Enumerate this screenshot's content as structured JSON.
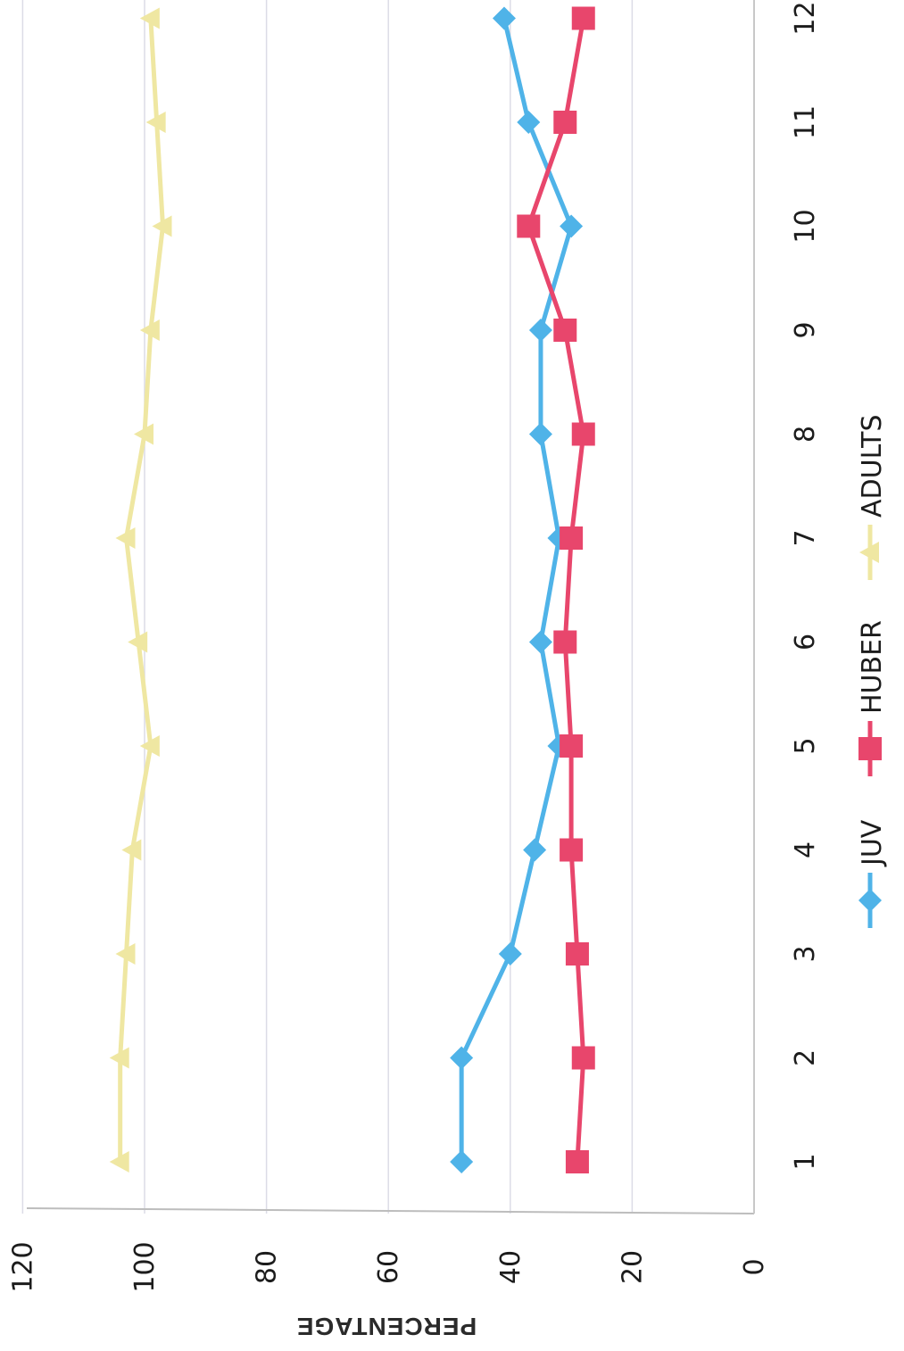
{
  "chart_data": {
    "type": "line",
    "title": "",
    "xlabel": "",
    "ylabel": "PERCENTAGE",
    "x": [
      1,
      2,
      3,
      4,
      5,
      6,
      7,
      8,
      9,
      10,
      11,
      12
    ],
    "ylim": [
      0,
      120
    ],
    "yticks": [
      0,
      20,
      40,
      60,
      80,
      100,
      120
    ],
    "grid": true,
    "legend": "bottom",
    "orientation": "rotated 90 degrees clockwise",
    "series": [
      {
        "name": "JUV",
        "color": "#4fb3e8",
        "marker": "diamond",
        "values": [
          48,
          48,
          40,
          36,
          32,
          35,
          32,
          35,
          35,
          30,
          37,
          41
        ]
      },
      {
        "name": "HUBER",
        "color": "#e8466c",
        "marker": "square",
        "values": [
          29,
          28,
          29,
          30,
          30,
          31,
          30,
          28,
          31,
          37,
          31,
          28
        ]
      },
      {
        "name": "ADULTS",
        "color": "#efe7a2",
        "marker": "triangle",
        "values": [
          104,
          104,
          103,
          102,
          99,
          101,
          103,
          100,
          99,
          97,
          98,
          99
        ]
      }
    ]
  }
}
